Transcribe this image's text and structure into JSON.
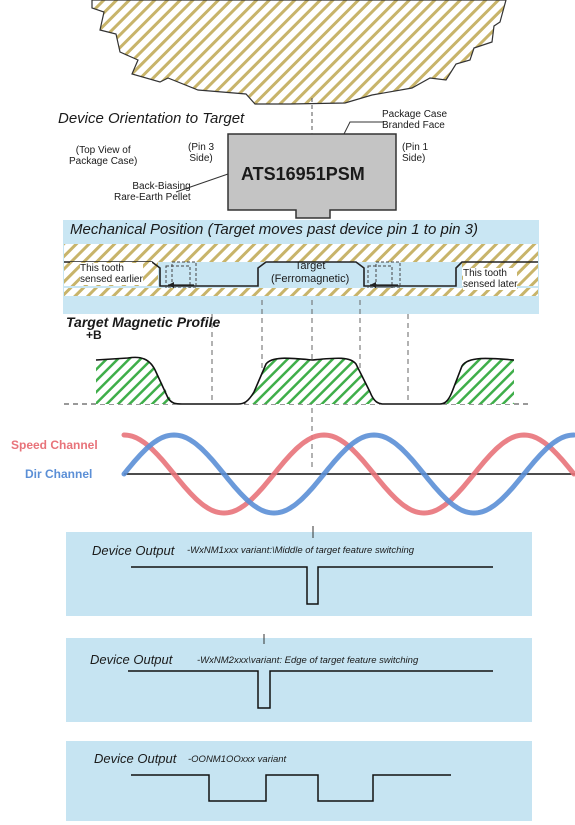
{
  "orientation": {
    "title": "Device Orientation to Target",
    "package_case_label": "Package Case\nBranded Face",
    "top_view_label": "(Top View of\nPackage Case)",
    "pin3_label": "(Pin 3\nSide)",
    "pin1_label": "(Pin 1\nSide)",
    "device_name": "ATS16951PSM",
    "pellet_label": "Back-Biasing\nRare-Earth Pellet"
  },
  "mechanical": {
    "title": "Mechanical Position (Target moves past device pin 1 to pin 3)",
    "tooth_earlier": "This tooth\nsensed earlier",
    "target_label": "Target\n(Ferromagnetic)",
    "tooth_later": "This tooth\nsensed later"
  },
  "magnetic": {
    "title": "Target Magnetic Profile",
    "axis_label": "+B"
  },
  "channels": {
    "speed_label": "Speed Channel",
    "dir_label": "Dir Channel",
    "speed_color": "#e8737a",
    "dir_color": "#5b8fd6"
  },
  "outputs": [
    {
      "label": "Device Output",
      "variant": "-WxNM1xxx variant:\\Middle of target feature switching"
    },
    {
      "label": "Device Output",
      "variant": "-WxNM2xxx\\variant: Edge of target feature switching"
    },
    {
      "label": "Device Output",
      "variant": "-OONM1OOxxx variant"
    }
  ]
}
